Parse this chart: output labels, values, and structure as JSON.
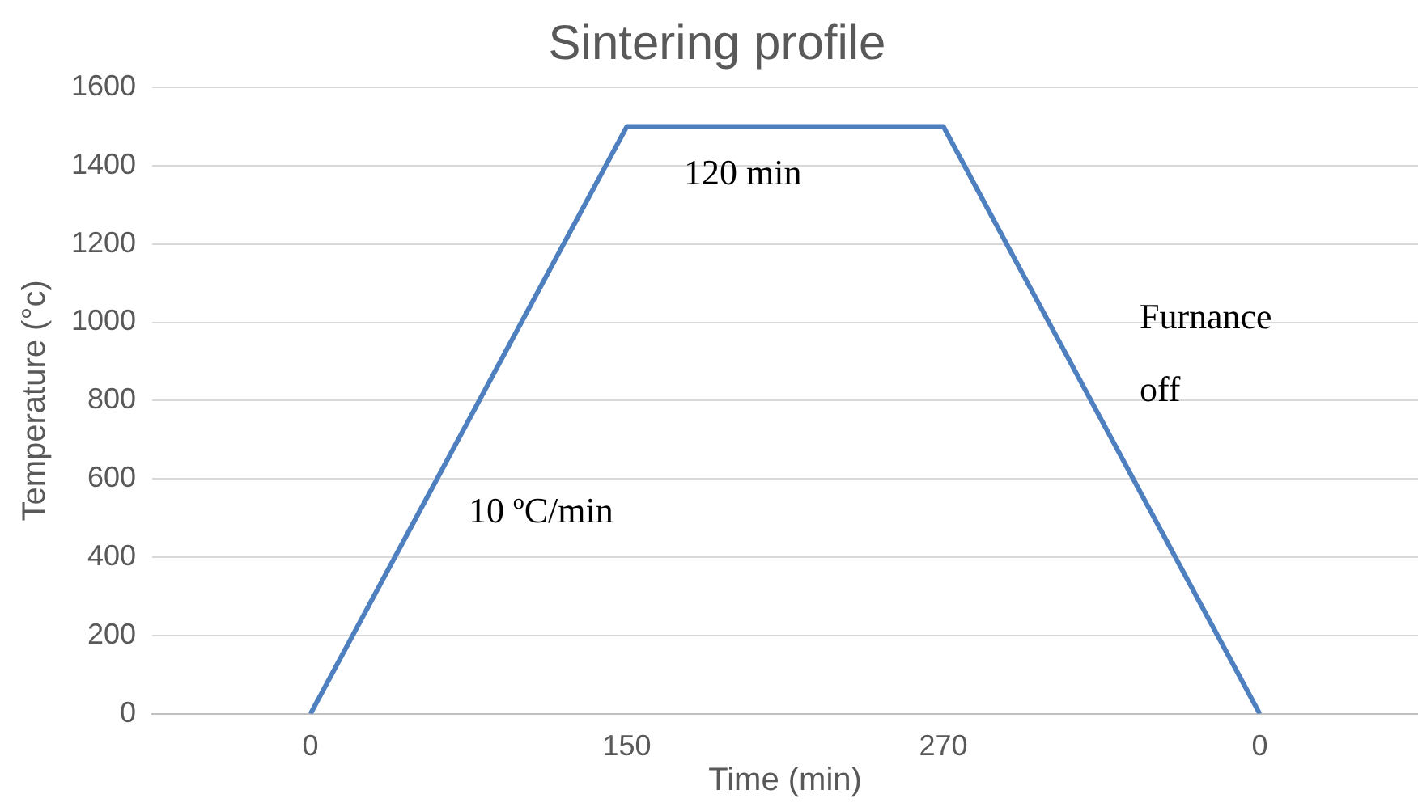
{
  "chart_data": {
    "type": "line",
    "title": "Sintering profile",
    "xlabel": "Time (min)",
    "ylabel": "Temperature (°c)",
    "categories": [
      "0",
      "150",
      "270",
      "0"
    ],
    "series": [
      {
        "color": "#4e7fbf",
        "values": [
          0,
          1500,
          1500,
          0
        ]
      }
    ],
    "ylim": [
      0,
      1600
    ],
    "yticks": [
      0,
      200,
      400,
      600,
      800,
      1000,
      1200,
      1400,
      1600
    ],
    "grid": "y",
    "legend": false,
    "marker": "none",
    "line_style": "solid",
    "annotations": [
      "120 min",
      "10 ºC/min",
      "Furnance\noff"
    ]
  }
}
